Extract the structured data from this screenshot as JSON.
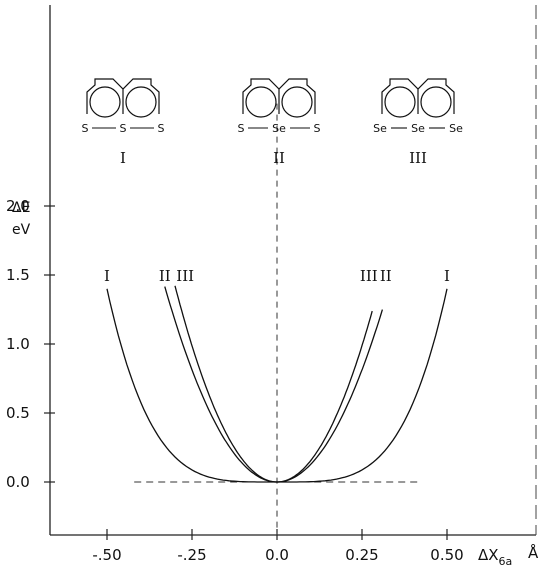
{
  "chart_data": {
    "type": "line",
    "ylabel": "ΔE",
    "ylabel_unit": "eV",
    "xlabel": "ΔX",
    "xlabel_subscript": "6a",
    "xlabel_unit": "Å",
    "xlim": [
      -0.7,
      0.7
    ],
    "ylim": [
      -0.35,
      2.8
    ],
    "x_ticks": [
      {
        "value": -0.5,
        "label": "-.50"
      },
      {
        "value": -0.25,
        "label": "-.25"
      },
      {
        "value": 0.0,
        "label": "0.0"
      },
      {
        "value": 0.25,
        "label": "0.25"
      },
      {
        "value": 0.5,
        "label": "0.50"
      }
    ],
    "y_ticks": [
      {
        "value": 0.0,
        "label": "0.0"
      },
      {
        "value": 0.5,
        "label": "0.5"
      },
      {
        "value": 1.0,
        "label": "1.0"
      },
      {
        "value": 1.5,
        "label": "1.5"
      },
      {
        "value": 2.0,
        "label": "2.0"
      }
    ],
    "series": [
      {
        "name": "I",
        "exponent": 4,
        "x_min": -0.5,
        "x_max": 0.5,
        "coefficient": 22.4
      },
      {
        "name": "II",
        "exponent": 2,
        "x_min": -0.33,
        "x_max": 0.31,
        "coefficient": 13.0
      },
      {
        "name": "III",
        "exponent": 2,
        "x_min": -0.3,
        "x_max": 0.28,
        "coefficient": 15.8
      }
    ],
    "baseline": {
      "y": 0.0,
      "x_from": -0.42,
      "x_to": 0.42,
      "style": "dashed"
    },
    "center_line": {
      "x": 0.0,
      "style": "dashed"
    },
    "curve_labels": [
      {
        "text": "I",
        "x": -0.5
      },
      {
        "text": "II",
        "x": -0.33
      },
      {
        "text": "III",
        "x": -0.27
      },
      {
        "text": "III",
        "x": 0.27
      },
      {
        "text": "II",
        "x": 0.32
      },
      {
        "text": "I",
        "x": 0.5
      }
    ],
    "structures": [
      {
        "label": "I",
        "atoms": [
          "S",
          "S",
          "S"
        ]
      },
      {
        "label": "II",
        "atoms": [
          "S",
          "Se",
          "S"
        ]
      },
      {
        "label": "III",
        "atoms": [
          "Se",
          "Se",
          "Se"
        ]
      }
    ]
  }
}
